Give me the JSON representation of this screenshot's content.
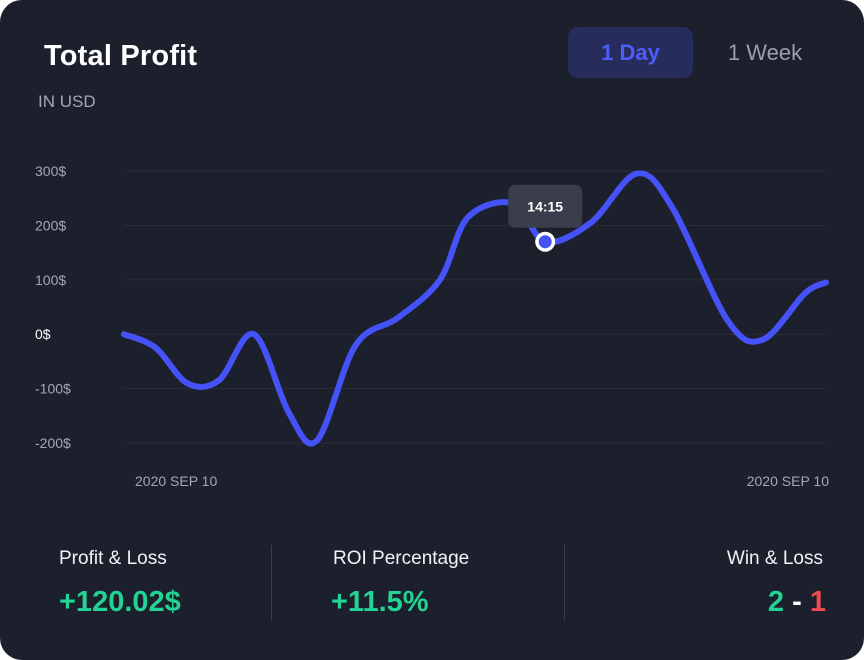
{
  "header": {
    "title": "Total Profit",
    "subtitle": "IN USD"
  },
  "timeframe": {
    "options": [
      "1 Day",
      "1 Week"
    ],
    "selected": "1 Day"
  },
  "chart_data": {
    "type": "line",
    "title": "Total Profit",
    "subtitle": "IN USD",
    "ylim": [
      -200,
      300
    ],
    "y_ticks": [
      "300$",
      "200$",
      "100$",
      "0$",
      "-100$",
      "-200$"
    ],
    "x_start_label": "2020 SEP 10",
    "x_end_label": "2020 SEP 10",
    "grid": true,
    "line_color": "#4552f7",
    "series": [
      {
        "x": [
          0,
          0.045,
          0.09,
          0.135,
          0.185,
          0.235,
          0.275,
          0.33,
          0.39,
          0.45,
          0.49,
          0.555,
          0.6,
          0.665,
          0.73,
          0.78,
          0.86,
          0.91,
          0.97,
          1.0
        ],
        "values": [
          0,
          -25,
          -90,
          -85,
          0,
          -145,
          -195,
          -20,
          30,
          100,
          215,
          240,
          170,
          205,
          295,
          235,
          25,
          -10,
          75,
          95
        ]
      }
    ],
    "highlight": {
      "index": 12,
      "label": "14:15"
    }
  },
  "stats": {
    "profit_loss": {
      "label": "Profit & Loss",
      "value": "+120.02$"
    },
    "roi": {
      "label": "ROI Percentage",
      "value": "+11.5%"
    },
    "win_loss": {
      "label": "Win & Loss",
      "wins": "2",
      "separator": "-",
      "losses": "1"
    }
  },
  "colors": {
    "background": "#1c1f2c",
    "accent": "#4552f7",
    "positive": "#22d393",
    "negative": "#ef4b50"
  }
}
